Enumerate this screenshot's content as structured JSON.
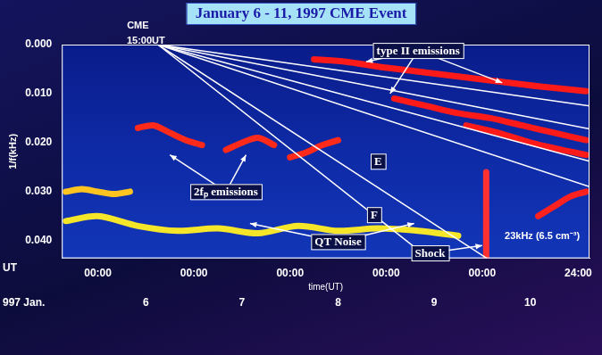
{
  "chart_data": {
    "type": "line",
    "title": "January 6 - 11, 1997 CME Event",
    "x_label": "time(UT)",
    "y_label": "1/f(kHz)",
    "x_prefix": "UT",
    "date_prefix": "997 Jan.",
    "date_labels": [
      {
        "value": 12,
        "label": "6"
      },
      {
        "value": 36,
        "label": "7"
      },
      {
        "value": 60,
        "label": "8"
      },
      {
        "value": 84,
        "label": "9"
      },
      {
        "value": 108,
        "label": "10"
      }
    ],
    "xlim": [
      -9,
      122.8
    ],
    "xticks": [
      {
        "value": 0,
        "label": "00:00"
      },
      {
        "value": 24,
        "label": "00:00"
      },
      {
        "value": 48,
        "label": "00:00"
      },
      {
        "value": 72,
        "label": "00:00"
      },
      {
        "value": 96,
        "label": "00:00"
      },
      {
        "value": 120,
        "label": "24:00"
      }
    ],
    "ylim": [
      0.0436,
      0
    ],
    "yticks": [
      {
        "value": 0,
        "label": "0.000"
      },
      {
        "value": 0.01,
        "label": "0.010"
      },
      {
        "value": 0.02,
        "label": "0.020"
      },
      {
        "value": 0.03,
        "label": "0.030"
      },
      {
        "value": 0.04,
        "label": "0.040"
      }
    ],
    "grid": false,
    "series": [
      {
        "x": [
          -8,
          0,
          10,
          20,
          30,
          40,
          50,
          60,
          70,
          80,
          90
        ],
        "values": [
          0.036,
          0.035,
          0.037,
          0.038,
          0.0375,
          0.0385,
          0.037,
          0.038,
          0.0375,
          0.038,
          0.039
        ],
        "color": "#f5e62a",
        "line_style": "band"
      },
      {
        "x": [
          -8,
          -4,
          0,
          4,
          8
        ],
        "values": [
          0.03,
          0.0295,
          0.03,
          0.0305,
          0.03
        ],
        "color": "#ffc41f",
        "line_style": "band"
      },
      {
        "x": [
          10,
          14,
          18,
          22,
          26
        ],
        "values": [
          0.017,
          0.0165,
          0.018,
          0.0195,
          0.0205
        ],
        "color": "#ff2a1a",
        "line_style": "band"
      },
      {
        "x": [
          32,
          36,
          40,
          44
        ],
        "values": [
          0.0215,
          0.02,
          0.019,
          0.0205
        ],
        "color": "#ff2a1a",
        "line_style": "band"
      },
      {
        "x": [
          48,
          52,
          56,
          60
        ],
        "values": [
          0.023,
          0.022,
          0.0205,
          0.0195
        ],
        "color": "#ff2a1a",
        "line_style": "band"
      },
      {
        "x": [
          54,
          62,
          70,
          80,
          90,
          100,
          110,
          122
        ],
        "values": [
          0.003,
          0.0035,
          0.0045,
          0.0055,
          0.0065,
          0.0075,
          0.0085,
          0.0095
        ],
        "color": "#ff1a1a",
        "line_style": "band"
      },
      {
        "x": [
          74,
          82,
          90,
          98,
          106,
          114,
          122
        ],
        "values": [
          0.011,
          0.0125,
          0.014,
          0.015,
          0.0165,
          0.018,
          0.0195
        ],
        "color": "#ff1a1a",
        "line_style": "band"
      },
      {
        "x": [
          92,
          100,
          108,
          116,
          122
        ],
        "values": [
          0.0165,
          0.018,
          0.02,
          0.0215,
          0.0225
        ],
        "color": "#ff1a1a",
        "line_style": "band"
      },
      {
        "x": [
          97,
          97
        ],
        "values": [
          0.026,
          0.0436
        ],
        "color": "#ff3030",
        "line_style": "band"
      },
      {
        "x": [
          110,
          114,
          118,
          122
        ],
        "values": [
          0.035,
          0.033,
          0.031,
          0.03
        ],
        "color": "#ff2020",
        "line_style": "band"
      },
      {
        "x": [
          15,
          122.8
        ],
        "values": [
          0,
          0.0125
        ],
        "color": "#ffffff",
        "line_style": "solid"
      },
      {
        "x": [
          15,
          122.8
        ],
        "values": [
          0,
          0.0172
        ],
        "color": "#ffffff",
        "line_style": "solid"
      },
      {
        "x": [
          15,
          122.8
        ],
        "values": [
          0,
          0.0238
        ],
        "color": "#ffffff",
        "line_style": "solid"
      },
      {
        "x": [
          15,
          122.8
        ],
        "values": [
          0,
          0.029
        ],
        "color": "#ffffff",
        "line_style": "solid"
      },
      {
        "x": [
          15,
          82
        ],
        "values": [
          0,
          0.0432
        ],
        "color": "#ffffff",
        "line_style": "solid"
      },
      {
        "x": [
          15,
          97
        ],
        "values": [
          0,
          0.0435
        ],
        "color": "#ffffff",
        "line_style": "solid"
      }
    ],
    "labels": [
      {
        "text": "type II emissions",
        "x": 80,
        "y": 0.0012,
        "arrows": [
          [
            67,
            0.0035
          ],
          [
            73,
            0.01
          ],
          [
            101,
            0.0078
          ]
        ]
      },
      {
        "text": "E",
        "x": 70,
        "y": 0.0238,
        "arrows": []
      },
      {
        "text": "F",
        "x": 69,
        "y": 0.0347,
        "arrows": []
      },
      {
        "text": "2fₚ emissions",
        "x": 32,
        "y": 0.03,
        "arrows": [
          [
            18,
            0.0225
          ],
          [
            37,
            0.0225
          ]
        ]
      },
      {
        "text": "QT Noise",
        "x": 60,
        "y": 0.0402,
        "arrows": [
          [
            38,
            0.0365
          ],
          [
            79,
            0.0365
          ]
        ]
      },
      {
        "text": "Shock",
        "x": 83,
        "y": 0.0425,
        "arrows": [
          [
            96,
            0.041
          ]
        ]
      }
    ],
    "texts": [
      {
        "text": "CME",
        "x": 10,
        "y": -0.0038
      },
      {
        "text": "15:00UT",
        "x": 12,
        "y": -0.0008
      },
      {
        "text": "23kHz (6.5 cm⁻³)",
        "x": 111,
        "y": 0.0392
      }
    ]
  }
}
